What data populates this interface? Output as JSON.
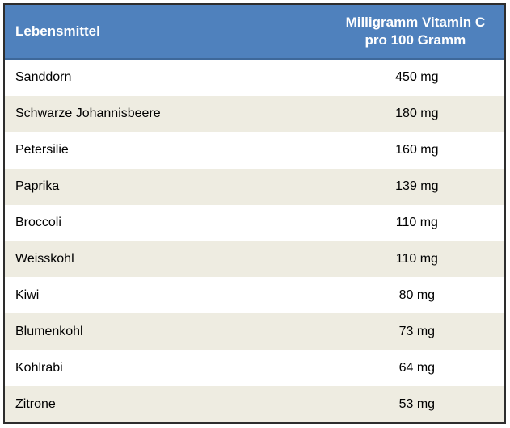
{
  "table": {
    "header": {
      "col1": "Lebensmittel",
      "col2_line1": "Milligramm Vitamin C",
      "col2_line2": "pro 100 Gramm"
    },
    "rows": [
      {
        "food": "Sanddorn",
        "amount": "450 mg"
      },
      {
        "food": "Schwarze Johannisbeere",
        "amount": "180 mg"
      },
      {
        "food": "Petersilie",
        "amount": "160 mg"
      },
      {
        "food": "Paprika",
        "amount": "139 mg"
      },
      {
        "food": "Broccoli",
        "amount": "110 mg"
      },
      {
        "food": "Weisskohl",
        "amount": "110 mg"
      },
      {
        "food": "Kiwi",
        "amount": "80 mg"
      },
      {
        "food": "Blumenkohl",
        "amount": "73 mg"
      },
      {
        "food": "Kohlrabi",
        "amount": "64 mg"
      },
      {
        "food": "Zitrone",
        "amount": "53 mg"
      }
    ],
    "colors": {
      "header_bg": "#4F81BD",
      "header_bottom_edge": "#3E689A",
      "header_text": "#FFFFFF",
      "row_bg": "#FFFFFF",
      "row_alt_bg": "#EEECE1",
      "body_text": "#000000",
      "outer_border": "#2D2D2D"
    }
  },
  "chart_data": {
    "type": "table",
    "title": "",
    "columns": [
      "Lebensmittel",
      "Milligramm Vitamin C pro 100 Gramm"
    ],
    "categories": [
      "Sanddorn",
      "Schwarze Johannisbeere",
      "Petersilie",
      "Paprika",
      "Broccoli",
      "Weisskohl",
      "Kiwi",
      "Blumenkohl",
      "Kohlrabi",
      "Zitrone"
    ],
    "values": [
      450,
      180,
      160,
      139,
      110,
      110,
      80,
      73,
      64,
      53
    ],
    "unit": "mg",
    "layout_hints": {
      "header_style": "blue banner, white bold text",
      "row_striping": "white / beige alternating starting white",
      "value_alignment": "center"
    }
  }
}
